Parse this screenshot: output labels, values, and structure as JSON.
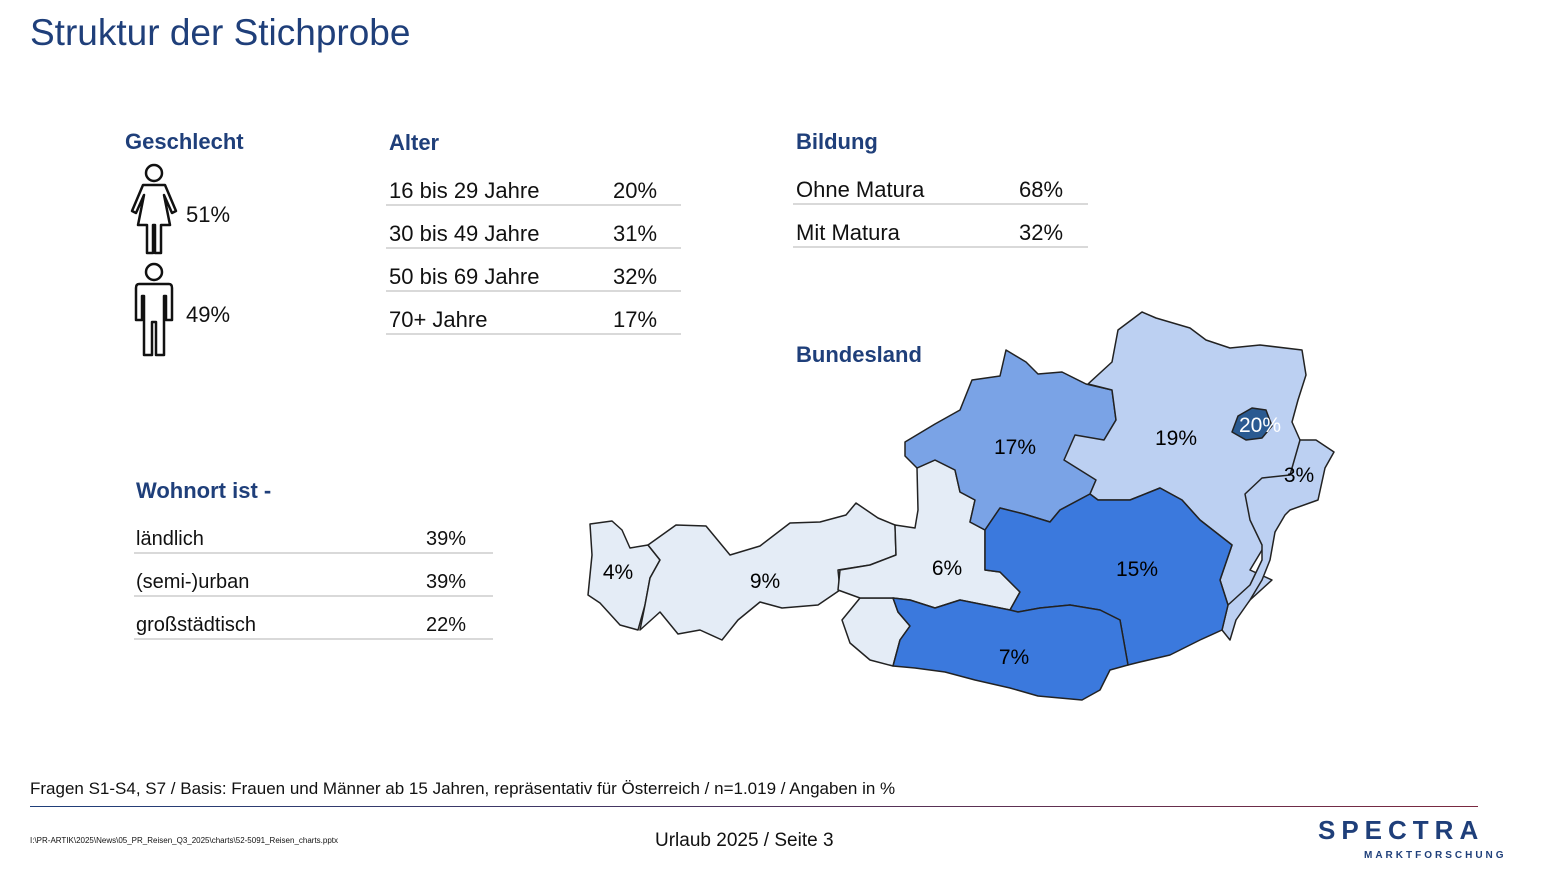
{
  "title": "Struktur der Stichprobe",
  "geschlecht": {
    "heading": "Geschlecht",
    "female_pct": "51%",
    "male_pct": "49%",
    "female_icon": "female-person-icon",
    "male_icon": "male-person-icon"
  },
  "alter": {
    "heading": "Alter",
    "rows": [
      {
        "label": "16 bis 29 Jahre",
        "value": "20%"
      },
      {
        "label": "30 bis 49 Jahre",
        "value": "31%"
      },
      {
        "label": "50 bis 69 Jahre",
        "value": "32%"
      },
      {
        "label": "70+ Jahre",
        "value": "17%"
      }
    ]
  },
  "bildung": {
    "heading": "Bildung",
    "rows": [
      {
        "label": "Ohne Matura",
        "value": "68%"
      },
      {
        "label": "Mit Matura",
        "value": "32%"
      }
    ]
  },
  "wohnort": {
    "heading": "Wohnort ist -",
    "rows": [
      {
        "label": "ländlich",
        "value": "39%"
      },
      {
        "label": "(semi-)urban",
        "value": "39%"
      },
      {
        "label": "großstädtisch",
        "value": "22%"
      }
    ]
  },
  "chart_data": {
    "type": "map",
    "title": "Bundesland",
    "regions": [
      {
        "label": "4%",
        "value": 4
      },
      {
        "label": "9%",
        "value": 9
      },
      {
        "label": "6%",
        "value": 6
      },
      {
        "label": "17%",
        "value": 17
      },
      {
        "label": "19%",
        "value": 19
      },
      {
        "label": "20%",
        "value": 20
      },
      {
        "label": "3%",
        "value": 3
      },
      {
        "label": "15%",
        "value": 15
      },
      {
        "label": "7%",
        "value": 7
      }
    ],
    "colors": {
      "low": "#e4ecf6",
      "mid": "#7aa3e6",
      "light": "#bcd0f2",
      "high": "#3b79dd",
      "top": "#2a5a91"
    }
  },
  "footer": {
    "note": "Fragen S1-S4, S7 / Basis: Frauen und Männer ab 15 Jahren, repräsentativ für Österreich / n=1.019 / Angaben in %",
    "file_path": "I:\\PR-ARTIK\\2025\\News\\05_PR_Reisen_Q3_2025\\charts\\52-5091_Reisen_charts.pptx",
    "page": "Urlaub 2025 /  Seite 3",
    "logo": "SPECTRA",
    "logo_sub": "MARKTFORSCHUNG"
  }
}
